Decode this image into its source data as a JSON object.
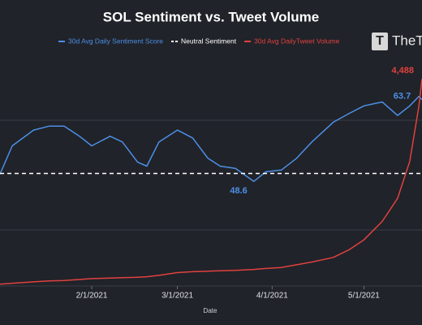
{
  "logo": "TheT",
  "chart_data": {
    "type": "line",
    "title": "SOL Sentiment vs. Tweet Volume",
    "xlabel": "Date",
    "x": [
      "2021-01-02",
      "2021-01-06",
      "2021-01-13",
      "2021-01-18",
      "2021-01-23",
      "2021-01-28",
      "2021-02-01",
      "2021-02-07",
      "2021-02-11",
      "2021-02-16",
      "2021-02-19",
      "2021-02-23",
      "2021-03-01",
      "2021-03-06",
      "2021-03-11",
      "2021-03-15",
      "2021-03-20",
      "2021-03-26",
      "2021-03-30",
      "2021-04-04",
      "2021-04-09",
      "2021-04-14",
      "2021-04-21",
      "2021-04-26",
      "2021-05-01",
      "2021-05-07",
      "2021-05-12",
      "2021-05-16",
      "2021-05-19",
      "2021-05-20"
    ],
    "xlim": [
      "2021-01-02",
      "2021-05-20"
    ],
    "xticks": [
      {
        "value": "2021-02-01",
        "label": "2/1/2021"
      },
      {
        "value": "2021-03-01",
        "label": "3/1/2021"
      },
      {
        "value": "2021-04-01",
        "label": "4/1/2021"
      },
      {
        "value": "2021-05-01",
        "label": "5/1/2021"
      }
    ],
    "ylim": [
      30,
      71
    ],
    "y2lim": [
      0,
      5000
    ],
    "series": [
      {
        "name": "30d Avg Daily Sentiment Score",
        "color": "#4d8fe6",
        "values": [
          49.9,
          54.9,
          57.7,
          58.4,
          58.4,
          56.6,
          54.9,
          56.6,
          55.6,
          52,
          51.3,
          55.6,
          57.7,
          56.3,
          52.7,
          51.3,
          50.9,
          48.6,
          50.3,
          50.6,
          52.7,
          55.6,
          59.1,
          60.6,
          62,
          62.7,
          60.3,
          62,
          63.7,
          63.1
        ]
      },
      {
        "name": "Neutral Sentiment",
        "color": "#ffffff",
        "value": 50
      },
      {
        "name": "30d Avg DailyTweet Volume",
        "color": "#e0413f",
        "axis": "y2",
        "values": [
          40,
          60,
          90,
          110,
          120,
          140,
          160,
          170,
          180,
          190,
          200,
          230,
          290,
          310,
          320,
          330,
          340,
          360,
          380,
          400,
          460,
          520,
          620,
          780,
          1000,
          1400,
          1900,
          2700,
          3900,
          4488
        ]
      }
    ],
    "annotations": [
      {
        "text": "4,488",
        "x": "2021-05-20",
        "y": 4488,
        "axis": "y2"
      },
      {
        "text": "63.7",
        "x": "2021-05-19",
        "y": 63.7
      },
      {
        "text": "48.6",
        "x": "2021-03-26",
        "y": 48.6
      }
    ]
  }
}
